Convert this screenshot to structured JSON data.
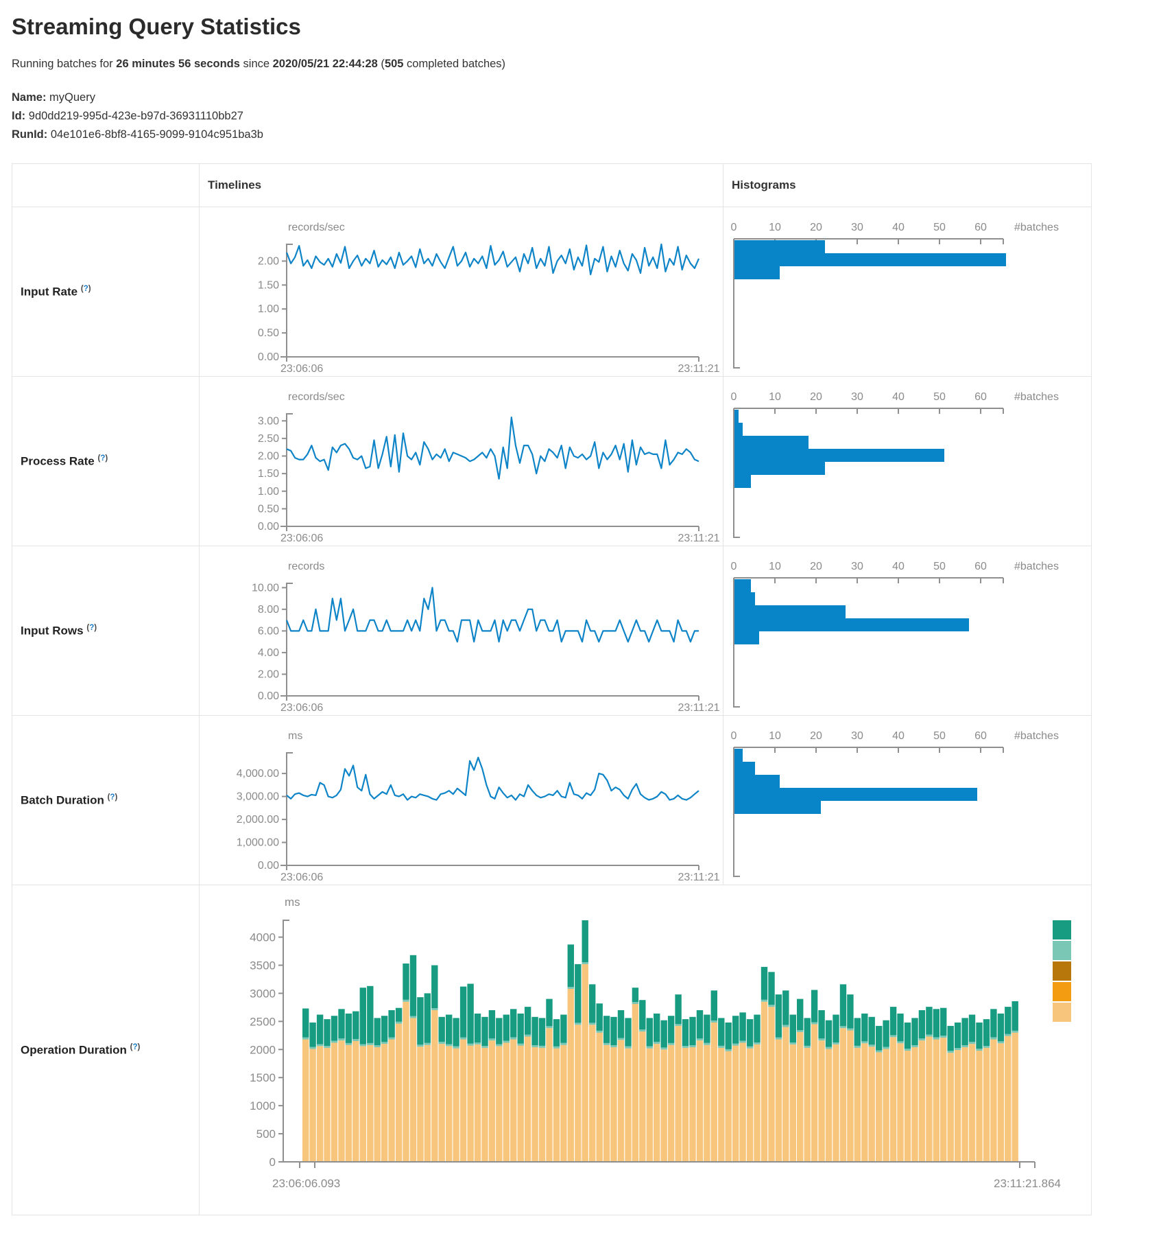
{
  "header": {
    "title": "Streaming Query Statistics",
    "running_prefix": "Running batches for ",
    "running_duration": "26 minutes 56 seconds",
    "running_middle": " since ",
    "running_start": "2020/05/21 22:44:28",
    "running_paren": " (",
    "running_batches": "505",
    "running_suffix": " completed batches)",
    "name_label": "Name:",
    "name_value": "myQuery",
    "id_label": "Id:",
    "id_value": "9d0dd219-995d-423e-b97d-36931110bb27",
    "runid_label": "RunId:",
    "runid_value": "04e101e6-8bf8-4165-9099-9104c951ba3b"
  },
  "table": {
    "timelines_header": "Timelines",
    "histograms_header": "Histograms",
    "help_open": "(",
    "help_q": "?",
    "help_close": ")",
    "rows": [
      {
        "label": "Input Rate"
      },
      {
        "label": "Process Rate"
      },
      {
        "label": "Input Rows"
      },
      {
        "label": "Batch Duration"
      },
      {
        "label": "Operation Duration"
      }
    ]
  },
  "colors": {
    "line_blue": "#0d84c8",
    "hist_blue": "#0884c8",
    "axis_gray": "#8f8f8f",
    "label_gray": "#8a8a8a",
    "teal": "#189c81",
    "light_teal": "#7ac7b5",
    "dark_orange": "#b8770b",
    "orange": "#f39c12",
    "tan": "#f7c67c"
  },
  "chart_data": [
    {
      "id": "input-rate-timeline",
      "type": "line",
      "title": "records/sec",
      "x_start_label": "23:06:06",
      "x_end_label": "23:11:21",
      "ymax": 2.35,
      "yticks": [
        {
          "v": 0,
          "label": "0.00"
        },
        {
          "v": 0.5,
          "label": "0.50"
        },
        {
          "v": 1,
          "label": "1.00"
        },
        {
          "v": 1.5,
          "label": "1.50"
        },
        {
          "v": 2,
          "label": "2.00"
        }
      ],
      "values": [
        2.18,
        1.95,
        2.08,
        2.32,
        1.9,
        2.02,
        1.85,
        2.1,
        1.98,
        1.92,
        2.05,
        1.88,
        2.15,
        1.96,
        2.3,
        1.85,
        2.0,
        2.12,
        1.9,
        2.05,
        1.95,
        2.22,
        1.88,
        2.02,
        1.93,
        2.08,
        1.85,
        2.18,
        1.92,
        2.0,
        2.1,
        1.87,
        2.25,
        1.95,
        2.05,
        1.9,
        2.15,
        1.98,
        1.85,
        2.08,
        2.3,
        1.9,
        2.0,
        2.18,
        1.88,
        2.05,
        1.95,
        2.1,
        1.85,
        2.32,
        1.92,
        2.02,
        2.2,
        1.88,
        1.98,
        2.08,
        1.78,
        2.15,
        1.95,
        2.28,
        1.85,
        2.05,
        1.9,
        2.3,
        1.75,
        2.0,
        2.12,
        1.95,
        2.25,
        1.82,
        2.08,
        1.9,
        2.33,
        1.72,
        2.05,
        1.98,
        2.3,
        1.78,
        2.1,
        1.88,
        2.22,
        1.95,
        1.8,
        2.15,
        2.02,
        1.75,
        2.28,
        1.9,
        2.08,
        1.85,
        2.35,
        1.78,
        2.05,
        1.92,
        2.3,
        1.82,
        2.12,
        1.95,
        1.85,
        2.05
      ]
    },
    {
      "id": "input-rate-histogram",
      "type": "hbar",
      "x_axis_label": "#batches",
      "xticks": [
        0,
        10,
        20,
        30,
        40,
        50,
        60
      ],
      "values": [
        22,
        66,
        11
      ]
    },
    {
      "id": "process-rate-timeline",
      "type": "line",
      "title": "records/sec",
      "x_start_label": "23:06:06",
      "x_end_label": "23:11:21",
      "ymax": 3.2,
      "yticks": [
        {
          "v": 0,
          "label": "0.00"
        },
        {
          "v": 0.5,
          "label": "0.50"
        },
        {
          "v": 1,
          "label": "1.00"
        },
        {
          "v": 1.5,
          "label": "1.50"
        },
        {
          "v": 2,
          "label": "2.00"
        },
        {
          "v": 2.5,
          "label": "2.50"
        },
        {
          "v": 3,
          "label": "3.00"
        }
      ],
      "values": [
        2.2,
        2.15,
        1.95,
        1.9,
        1.9,
        2.05,
        2.3,
        1.95,
        1.85,
        1.9,
        1.6,
        2.25,
        2.1,
        2.3,
        2.35,
        2.2,
        1.95,
        1.9,
        2.0,
        1.65,
        1.7,
        2.45,
        1.65,
        2.05,
        2.55,
        1.7,
        2.6,
        1.55,
        2.65,
        2.0,
        1.9,
        2.1,
        1.75,
        2.4,
        2.2,
        1.9,
        2.05,
        1.95,
        2.2,
        1.85,
        2.1,
        2.05,
        2.0,
        1.95,
        1.85,
        1.9,
        2.0,
        2.1,
        1.95,
        2.2,
        2.0,
        1.35,
        2.25,
        1.65,
        3.1,
        2.3,
        1.8,
        2.3,
        2.3,
        2.05,
        1.5,
        2.0,
        1.85,
        2.2,
        2.1,
        1.95,
        2.3,
        1.65,
        2.25,
        2.0,
        1.95,
        2.05,
        1.9,
        2.0,
        2.4,
        1.65,
        2.1,
        1.9,
        2.05,
        2.3,
        1.9,
        2.35,
        1.55,
        2.45,
        1.75,
        2.25,
        2.05,
        2.1,
        2.05,
        2.05,
        1.65,
        2.45,
        1.75,
        1.9,
        2.1,
        2.05,
        2.2,
        2.1,
        1.9,
        1.85
      ]
    },
    {
      "id": "process-rate-histogram",
      "type": "hbar",
      "x_axis_label": "#batches",
      "xticks": [
        0,
        10,
        20,
        30,
        40,
        50,
        60
      ],
      "values": [
        1,
        2,
        18,
        51,
        22,
        4
      ]
    },
    {
      "id": "input-rows-timeline",
      "type": "line",
      "title": "records",
      "x_start_label": "23:06:06",
      "x_end_label": "23:11:21",
      "ymax": 10.4,
      "yticks": [
        {
          "v": 0,
          "label": "0.00"
        },
        {
          "v": 2,
          "label": "2.00"
        },
        {
          "v": 4,
          "label": "4.00"
        },
        {
          "v": 6,
          "label": "6.00"
        },
        {
          "v": 8,
          "label": "8.00"
        },
        {
          "v": 10,
          "label": "10.00"
        }
      ],
      "values": [
        7,
        6,
        6,
        6,
        7,
        6,
        6,
        8,
        6,
        6,
        6,
        9,
        7,
        9,
        6,
        7,
        8,
        6,
        6,
        6,
        7,
        7,
        6,
        6,
        7,
        6,
        6,
        6,
        6,
        7,
        6,
        7,
        6,
        9,
        8,
        10,
        6,
        7,
        7,
        6,
        6,
        5,
        7,
        7,
        7,
        5,
        7,
        6,
        6,
        6,
        7,
        5,
        7,
        6,
        7,
        7,
        6,
        7,
        8,
        8,
        6,
        7,
        7,
        6,
        6,
        7,
        5,
        6,
        6,
        6,
        6,
        5,
        7,
        6,
        6,
        5,
        6,
        6,
        6,
        6,
        7,
        6,
        5,
        6,
        7,
        6,
        6,
        5,
        6,
        7,
        6,
        6,
        6,
        5,
        7,
        6,
        6,
        5,
        6,
        6
      ]
    },
    {
      "id": "input-rows-histogram",
      "type": "hbar",
      "x_axis_label": "#batches",
      "xticks": [
        0,
        10,
        20,
        30,
        40,
        50,
        60
      ],
      "values": [
        4,
        5,
        27,
        57,
        6
      ]
    },
    {
      "id": "batch-duration-timeline",
      "type": "line",
      "title": "ms",
      "x_start_label": "23:06:06",
      "x_end_label": "23:11:21",
      "ymax": 4900,
      "yticks": [
        {
          "v": 0,
          "label": "0.00"
        },
        {
          "v": 1000,
          "label": "1,000.00"
        },
        {
          "v": 2000,
          "label": "2,000.00"
        },
        {
          "v": 3000,
          "label": "3,000.00"
        },
        {
          "v": 4000,
          "label": "4,000.00"
        }
      ],
      "values": [
        3050,
        2900,
        3100,
        3150,
        3050,
        3000,
        3080,
        3050,
        3600,
        3500,
        3000,
        2950,
        3050,
        3300,
        4200,
        3900,
        4350,
        3400,
        3250,
        3950,
        3100,
        2900,
        3050,
        3200,
        3100,
        3500,
        3050,
        3000,
        3100,
        2850,
        3000,
        2950,
        3100,
        3050,
        3000,
        2900,
        2850,
        3100,
        3150,
        3250,
        3100,
        3350,
        3200,
        3050,
        4550,
        4150,
        4700,
        4200,
        3500,
        3000,
        2900,
        3400,
        3150,
        2950,
        3050,
        2850,
        3100,
        3000,
        3500,
        3250,
        3050,
        2950,
        3000,
        3100,
        3050,
        3250,
        3000,
        2950,
        3600,
        3100,
        3050,
        2900,
        3150,
        3050,
        3300,
        4000,
        3950,
        3700,
        3250,
        3400,
        3300,
        3050,
        2900,
        3300,
        3550,
        3100,
        2950,
        2850,
        2900,
        3000,
        3200,
        3100,
        2850,
        2900,
        3050,
        2900,
        2850,
        2950,
        3100,
        3250
      ]
    },
    {
      "id": "batch-duration-histogram",
      "type": "hbar",
      "x_axis_label": "#batches",
      "xticks": [
        0,
        10,
        20,
        30,
        40,
        50,
        60
      ],
      "values": [
        2,
        5,
        11,
        59,
        21
      ]
    },
    {
      "id": "operation-duration",
      "type": "stacked_bar",
      "title": "ms",
      "x_start_label": "23:06:06.093",
      "x_end_label": "23:11:21.864",
      "ymax": 4300,
      "yticks": [
        {
          "v": 0,
          "label": "0"
        },
        {
          "v": 500,
          "label": "500"
        },
        {
          "v": 1000,
          "label": "1000"
        },
        {
          "v": 1500,
          "label": "1500"
        },
        {
          "v": 2000,
          "label": "2000"
        },
        {
          "v": 2500,
          "label": "2500"
        },
        {
          "v": 3000,
          "label": "3000"
        },
        {
          "v": 3500,
          "label": "3500"
        },
        {
          "v": 4000,
          "label": "4000"
        }
      ],
      "legend_colors": [
        "#189c81",
        "#7ac7b5",
        "#b8770b",
        "#f39c12",
        "#f7c67c"
      ],
      "series": {
        "addBatch": [
          2180,
          2010,
          2060,
          2030,
          2120,
          2160,
          2080,
          2150,
          2060,
          2080,
          2040,
          2100,
          2180,
          2460,
          2850,
          2560,
          2050,
          2080,
          2700,
          2100,
          2060,
          2020,
          2180,
          2070,
          2090,
          2030,
          2160,
          2060,
          2120,
          2180,
          2070,
          2230,
          2040,
          2030,
          2380,
          2020,
          2080,
          3080,
          2440,
          3520,
          2440,
          2300,
          2080,
          2040,
          2170,
          2020,
          2810,
          2320,
          2020,
          2100,
          2000,
          2080,
          2420,
          2030,
          2040,
          2160,
          2080,
          2480,
          2030,
          1970,
          2070,
          2120,
          2020,
          2090,
          2850,
          2760,
          2180,
          2400,
          2090,
          2310,
          2030,
          2450,
          2160,
          2010,
          2090,
          2380,
          2340,
          2030,
          2110,
          2050,
          1950,
          2010,
          2220,
          2110,
          1980,
          2040,
          2160,
          2230,
          2180,
          2210,
          1940,
          1990,
          2040,
          2100,
          1980,
          2030,
          2180,
          2110,
          2240,
          2300
        ],
        "getBatch": 35,
        "totals": [
          2730,
          2480,
          2620,
          2540,
          2600,
          2720,
          2640,
          2680,
          3100,
          3130,
          2560,
          2600,
          2700,
          2740,
          3530,
          3680,
          2930,
          3000,
          3500,
          2580,
          2620,
          2560,
          3120,
          3170,
          2640,
          2580,
          2700,
          2560,
          2620,
          2720,
          2640,
          2760,
          2580,
          2560,
          2900,
          2540,
          2620,
          3869,
          3520,
          4300,
          3160,
          2820,
          2600,
          2580,
          2700,
          2560,
          3100,
          2880,
          2560,
          2640,
          2520,
          2600,
          2980,
          2540,
          2580,
          2700,
          2620,
          3050,
          2560,
          2480,
          2600,
          2660,
          2540,
          2620,
          3470,
          3380,
          2980,
          3050,
          2620,
          2900,
          2560,
          3060,
          2700,
          2520,
          2620,
          3160,
          2980,
          2560,
          2640,
          2580,
          2420,
          2520,
          2760,
          2640,
          2480,
          2560,
          2700,
          2760,
          2720,
          2740,
          2420,
          2480,
          2560,
          2620,
          2480,
          2540,
          2720,
          2640,
          2760,
          2860
        ]
      }
    }
  ]
}
